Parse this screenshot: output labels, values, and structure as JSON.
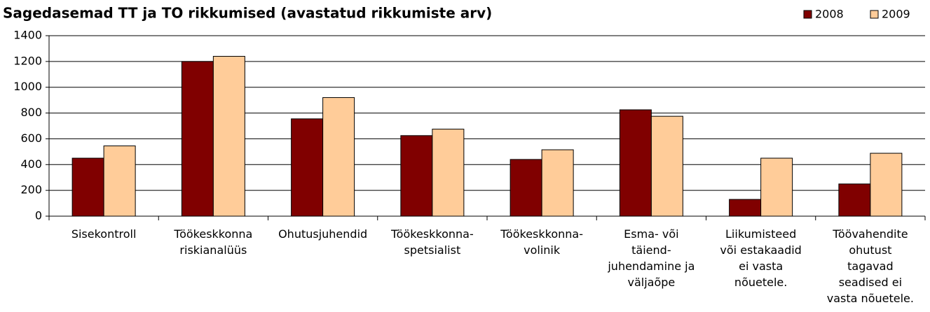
{
  "chart_data": {
    "type": "bar",
    "title": "Sagedasemad TT ja TO rikkumised (avastatud rikkumiste arv)",
    "categories": [
      "Sisekontroll",
      "Töökeskkonna\nriskianalüüs",
      "Ohutusjuhendid",
      "Töökeskkonna-\nspetsialist",
      "Töökeskkonna-\nvolinik",
      "Esma- või\ntäiend-\njuhendamine ja\nväljaõpe",
      "Liikumisteed\nvõi estakaadid\nei vasta\nnõuetele.",
      "Töövahendite\nohutust\ntagavad\nseadised ei\nvasta nõuetele."
    ],
    "series": [
      {
        "name": "2008",
        "color": "#800000",
        "values": [
          450,
          1200,
          755,
          625,
          440,
          825,
          130,
          250
        ]
      },
      {
        "name": "2009",
        "color": "#ffcc99",
        "values": [
          545,
          1240,
          920,
          675,
          515,
          775,
          450,
          488
        ]
      }
    ],
    "ylim": [
      0,
      1400
    ],
    "yticks": [
      0,
      200,
      400,
      600,
      800,
      1000,
      1200,
      1400
    ],
    "grid": true
  }
}
